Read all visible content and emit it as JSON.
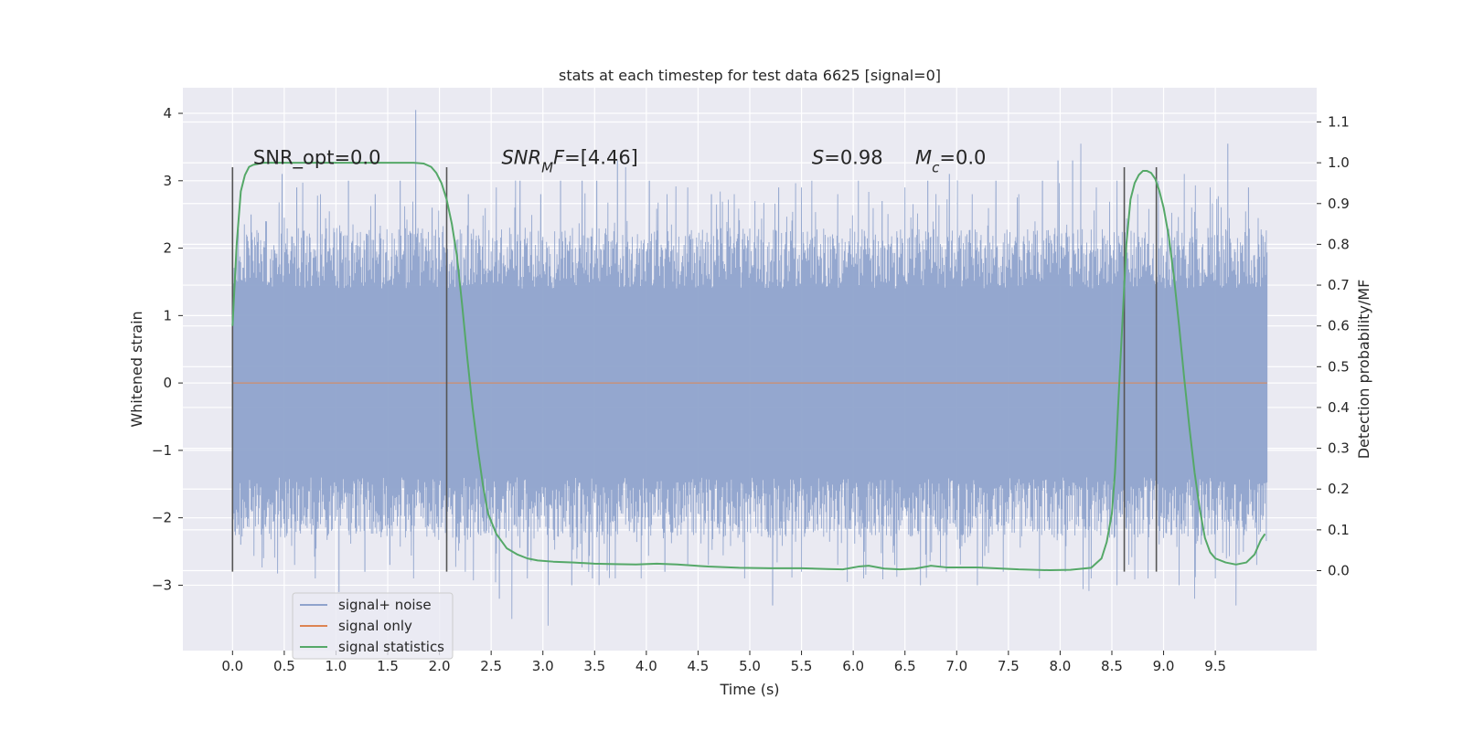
{
  "chart_data": {
    "type": "line",
    "title": "stats at each timestep for test data 6625 [signal=0]",
    "xlabel": "Time (s)",
    "ylabel": "Whitened strain",
    "y2label": "Detection probability/MF",
    "xlim": [
      -0.48,
      10.48
    ],
    "ylim": [
      -3.97,
      4.38
    ],
    "y2lim": [
      -0.196,
      1.184
    ],
    "xticks": [
      0.0,
      0.5,
      1.0,
      1.5,
      2.0,
      2.5,
      3.0,
      3.5,
      4.0,
      4.5,
      5.0,
      5.5,
      6.0,
      6.5,
      7.0,
      7.5,
      8.0,
      8.5,
      9.0,
      9.5
    ],
    "xtick_labels": [
      "0.0",
      "0.5",
      "1.0",
      "1.5",
      "2.0",
      "2.5",
      "3.0",
      "3.5",
      "4.0",
      "4.5",
      "5.0",
      "5.5",
      "6.0",
      "6.5",
      "7.0",
      "7.5",
      "8.0",
      "8.5",
      "9.0",
      "9.5"
    ],
    "yticks": [
      -3,
      -2,
      -1,
      0,
      1,
      2,
      3,
      4
    ],
    "ytick_labels": [
      "−3",
      "−2",
      "−1",
      "0",
      "1",
      "2",
      "3",
      "4"
    ],
    "y2ticks": [
      0.0,
      0.1,
      0.2,
      0.3,
      0.4,
      0.5,
      0.6,
      0.7,
      0.8,
      0.9,
      1.0,
      1.1
    ],
    "y2tick_labels": [
      "0.0",
      "0.1",
      "0.2",
      "0.3",
      "0.4",
      "0.5",
      "0.6",
      "0.7",
      "0.8",
      "0.9",
      "1.0",
      "1.1"
    ],
    "grid": true,
    "legend_position": "lower-left",
    "series": [
      {
        "name": "signal+ noise",
        "axis": "left",
        "color": "#8fa3cc",
        "style": "dense noise trace, approx. ±1.4 body with peaks to ±3.5",
        "peaks": [
          [
            0.18,
            2.5
          ],
          [
            0.32,
            2.4
          ],
          [
            0.48,
            3.1
          ],
          [
            0.62,
            2.9
          ],
          [
            0.85,
            2.8
          ],
          [
            1.12,
            3.0
          ],
          [
            1.38,
            2.8
          ],
          [
            1.62,
            3.0
          ],
          [
            1.77,
            4.05
          ],
          [
            1.93,
            2.6
          ],
          [
            2.28,
            2.8
          ],
          [
            2.55,
            2.9
          ],
          [
            2.78,
            3.0
          ],
          [
            2.98,
            2.8
          ],
          [
            3.17,
            3.0
          ],
          [
            3.38,
            3.0
          ],
          [
            3.52,
            3.0
          ],
          [
            3.72,
            3.3
          ],
          [
            3.8,
            3.2
          ],
          [
            4.03,
            3.0
          ],
          [
            4.2,
            2.8
          ],
          [
            4.4,
            2.9
          ],
          [
            4.63,
            2.8
          ],
          [
            4.85,
            2.8
          ],
          [
            5.05,
            2.7
          ],
          [
            5.28,
            2.9
          ],
          [
            5.5,
            2.9
          ],
          [
            5.6,
            3.0
          ],
          [
            5.85,
            2.8
          ],
          [
            6.05,
            3.0
          ],
          [
            6.28,
            2.7
          ],
          [
            6.5,
            2.9
          ],
          [
            6.72,
            3.0
          ],
          [
            6.93,
            3.1
          ],
          [
            7.15,
            2.8
          ],
          [
            7.38,
            3.0
          ],
          [
            7.6,
            2.8
          ],
          [
            7.83,
            3.0
          ],
          [
            7.98,
            3.3
          ],
          [
            8.12,
            3.3
          ],
          [
            8.2,
            3.55
          ],
          [
            8.35,
            2.9
          ],
          [
            8.55,
            3.0
          ],
          [
            8.75,
            2.8
          ],
          [
            8.95,
            3.0
          ],
          [
            9.2,
            3.1
          ],
          [
            9.45,
            2.9
          ],
          [
            9.62,
            3.55
          ],
          [
            9.82,
            2.9
          ],
          [
            9.95,
            2.2
          ]
        ],
        "troughs": [
          [
            0.08,
            -2.4
          ],
          [
            0.3,
            -2.6
          ],
          [
            0.6,
            -2.7
          ],
          [
            0.8,
            -2.9
          ],
          [
            1.03,
            -3.1
          ],
          [
            1.28,
            -2.8
          ],
          [
            1.52,
            -2.7
          ],
          [
            1.75,
            -2.9
          ],
          [
            2.25,
            -2.8
          ],
          [
            2.58,
            -3.2
          ],
          [
            2.7,
            -3.5
          ],
          [
            2.85,
            -2.9
          ],
          [
            3.05,
            -3.6
          ],
          [
            3.28,
            -3.0
          ],
          [
            3.48,
            -2.9
          ],
          [
            3.7,
            -2.9
          ],
          [
            3.95,
            -2.9
          ],
          [
            4.18,
            -2.8
          ],
          [
            4.4,
            -2.7
          ],
          [
            4.6,
            -2.7
          ],
          [
            4.95,
            -2.9
          ],
          [
            5.22,
            -3.3
          ],
          [
            5.5,
            -2.8
          ],
          [
            5.85,
            -2.7
          ],
          [
            6.1,
            -2.9
          ],
          [
            6.4,
            -2.7
          ],
          [
            6.65,
            -3.0
          ],
          [
            6.9,
            -2.8
          ],
          [
            7.2,
            -3.0
          ],
          [
            7.45,
            -2.8
          ],
          [
            7.8,
            -2.9
          ],
          [
            8.05,
            -2.8
          ],
          [
            8.3,
            -2.9
          ],
          [
            8.55,
            -3.0
          ],
          [
            8.85,
            -2.9
          ],
          [
            9.15,
            -3.0
          ],
          [
            9.3,
            -3.2
          ],
          [
            9.5,
            -2.9
          ],
          [
            9.7,
            -3.3
          ],
          [
            9.9,
            -2.7
          ]
        ]
      },
      {
        "name": "signal only",
        "axis": "left",
        "color": "#dd8452",
        "x": [
          0.0,
          10.0
        ],
        "y": [
          0.0,
          0.0
        ]
      },
      {
        "name": "signal statistics",
        "axis": "right",
        "color": "#55a868",
        "x": [
          0.0,
          0.04,
          0.08,
          0.12,
          0.16,
          0.2,
          0.3,
          0.5,
          1.0,
          1.5,
          1.75,
          1.85,
          1.92,
          1.97,
          2.02,
          2.07,
          2.12,
          2.17,
          2.22,
          2.27,
          2.32,
          2.37,
          2.42,
          2.47,
          2.55,
          2.65,
          2.75,
          2.85,
          2.95,
          3.1,
          3.3,
          3.5,
          3.7,
          3.9,
          4.1,
          4.3,
          4.6,
          4.9,
          5.2,
          5.5,
          5.75,
          5.9,
          6.05,
          6.15,
          6.3,
          6.45,
          6.6,
          6.75,
          6.9,
          7.2,
          7.6,
          7.9,
          8.1,
          8.3,
          8.4,
          8.45,
          8.5,
          8.53,
          8.56,
          8.6,
          8.64,
          8.68,
          8.72,
          8.76,
          8.8,
          8.84,
          8.88,
          8.92,
          8.96,
          9.0,
          9.05,
          9.1,
          9.15,
          9.2,
          9.25,
          9.3,
          9.35,
          9.4,
          9.45,
          9.5,
          9.6,
          9.7,
          9.8,
          9.88,
          9.94,
          9.98
        ],
        "y": [
          0.6,
          0.8,
          0.93,
          0.97,
          0.99,
          0.995,
          1.0,
          1.0,
          1.0,
          1.0,
          1.0,
          0.998,
          0.99,
          0.975,
          0.95,
          0.91,
          0.85,
          0.77,
          0.65,
          0.52,
          0.4,
          0.3,
          0.21,
          0.14,
          0.09,
          0.055,
          0.04,
          0.03,
          0.025,
          0.022,
          0.02,
          0.017,
          0.016,
          0.015,
          0.017,
          0.015,
          0.01,
          0.007,
          0.006,
          0.006,
          0.004,
          0.003,
          0.01,
          0.012,
          0.005,
          0.003,
          0.005,
          0.012,
          0.008,
          0.008,
          0.003,
          0.001,
          0.002,
          0.007,
          0.03,
          0.07,
          0.14,
          0.24,
          0.4,
          0.6,
          0.8,
          0.91,
          0.95,
          0.97,
          0.98,
          0.98,
          0.975,
          0.96,
          0.93,
          0.89,
          0.82,
          0.72,
          0.6,
          0.47,
          0.35,
          0.24,
          0.15,
          0.08,
          0.045,
          0.03,
          0.02,
          0.015,
          0.02,
          0.04,
          0.075,
          0.09
        ]
      }
    ],
    "vlines": [
      {
        "x": 0.0,
        "y_range": [
          -2.8,
          3.2
        ]
      },
      {
        "x": 2.07,
        "y_range": [
          -2.8,
          3.2
        ]
      },
      {
        "x": 8.62,
        "y_range": [
          -2.8,
          3.2
        ]
      },
      {
        "x": 8.93,
        "y_range": [
          -2.8,
          3.2
        ]
      }
    ],
    "annotations": [
      {
        "x": 0.2,
        "y": 3.25,
        "parts": [
          {
            "t": "SNR_opt=0.0"
          }
        ]
      },
      {
        "x": 2.6,
        "y": 3.25,
        "parts": [
          {
            "t": "SNR",
            "i": true
          },
          {
            "t": "M",
            "i": true,
            "sub": true
          },
          {
            "t": "F",
            "i": true
          },
          {
            "t": "=[4.46]"
          }
        ]
      },
      {
        "x": 5.6,
        "y": 3.25,
        "parts": [
          {
            "t": "S",
            "i": true
          },
          {
            "t": "=0.98"
          }
        ]
      },
      {
        "x": 6.6,
        "y": 3.25,
        "parts": [
          {
            "t": "M",
            "i": true
          },
          {
            "t": "c",
            "i": true,
            "sub": true
          },
          {
            "t": "=0.0"
          }
        ]
      }
    ]
  },
  "colors": {
    "page_background": "#ffffff",
    "plot_background": "#eaeaf2",
    "grid": "#ffffff",
    "vline": "#555555",
    "legend_border": "#cccccc",
    "legend_background": "#eaeaf2",
    "text": "#262626"
  }
}
